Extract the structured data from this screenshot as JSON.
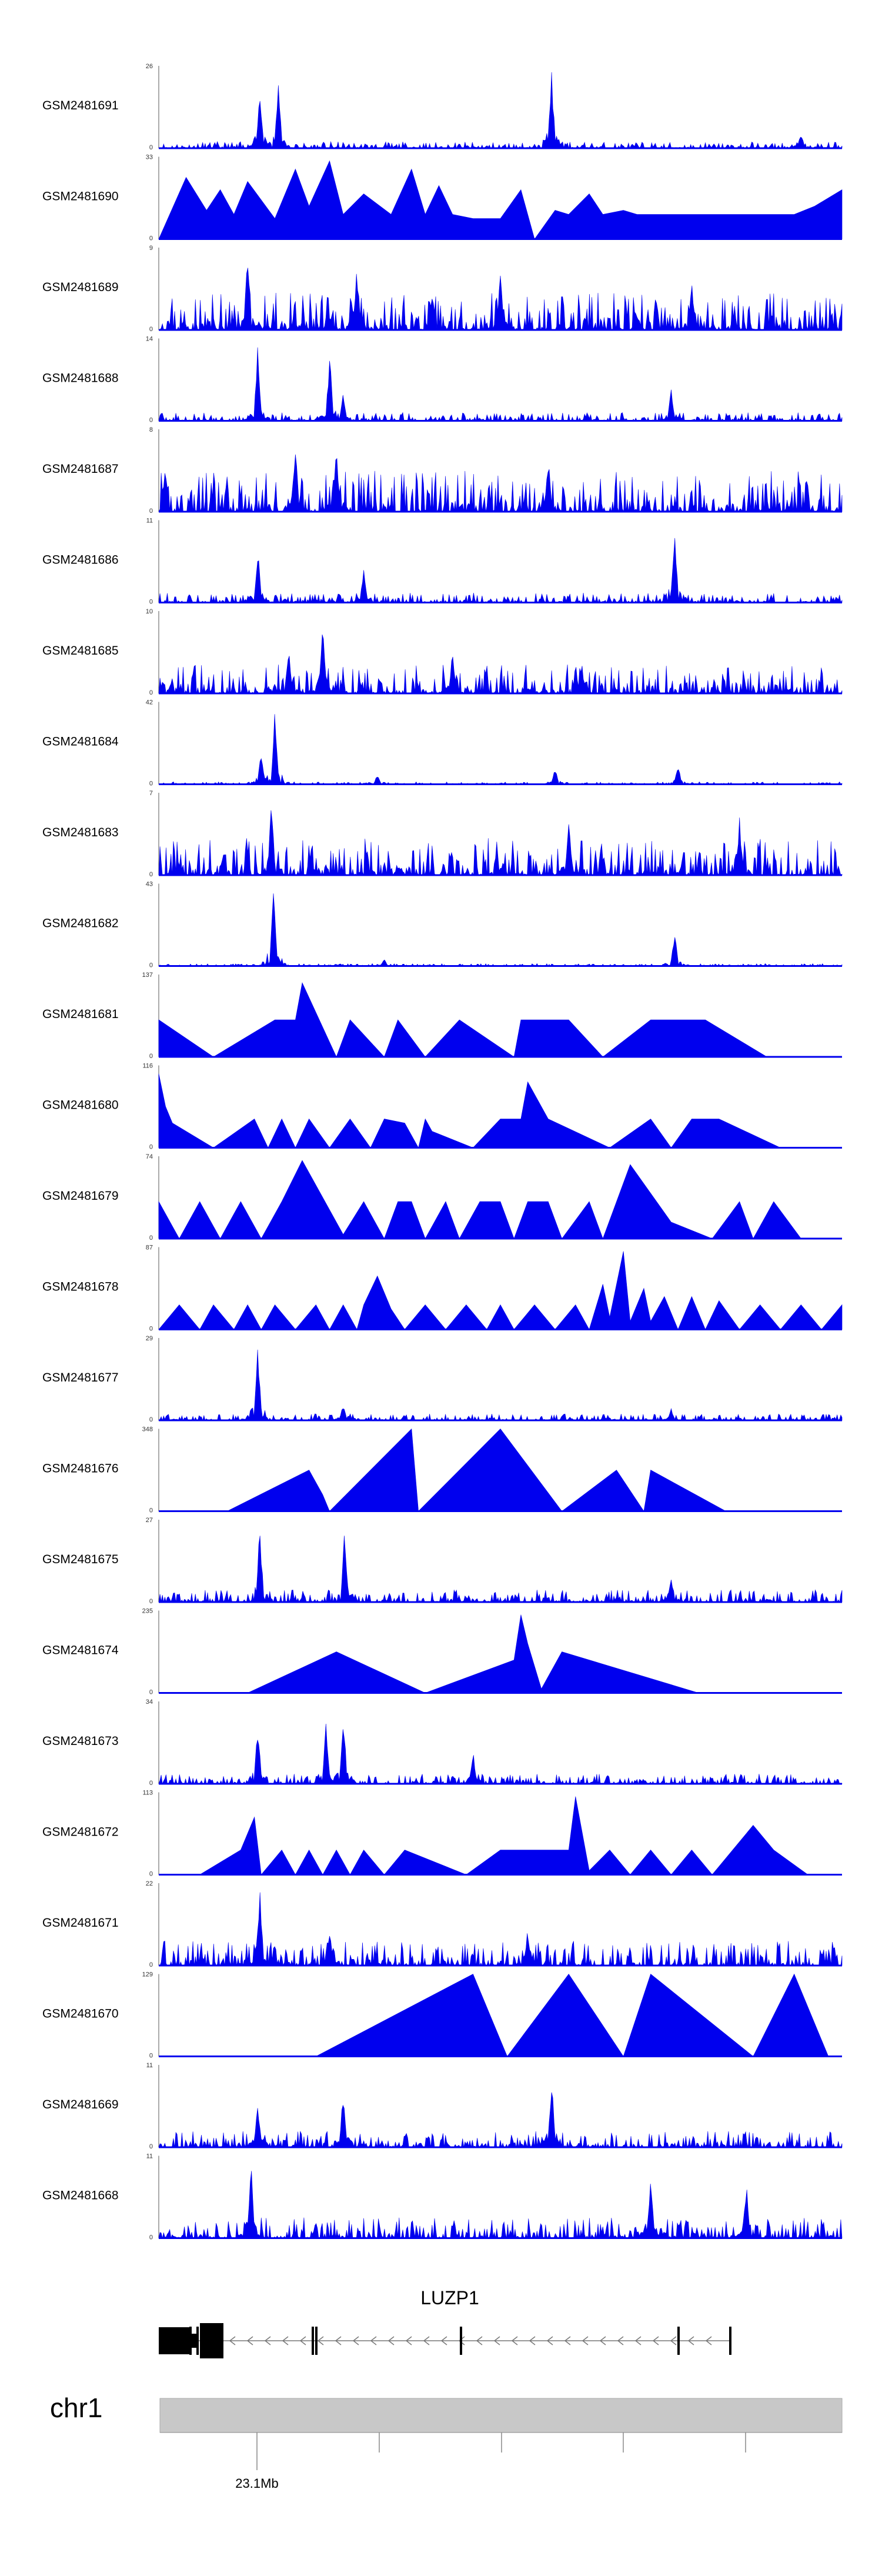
{
  "chart_data": {
    "type": "area",
    "title": "",
    "xlabel": "",
    "ylabel": "",
    "region": {
      "chromosome": "chr1",
      "axis_tick_label": "23.1Mb",
      "axis_ticks": 5
    },
    "gene": {
      "name": "LUZP1",
      "strand": "-"
    },
    "tracks": [
      {
        "name": "GSM2481691",
        "ymax": 26,
        "style": "noisy",
        "noise": 0.08,
        "seed": 11,
        "peaks": [
          [
            0.148,
            0.75
          ],
          [
            0.175,
            0.9
          ],
          [
            0.575,
            0.95
          ],
          [
            0.94,
            0.2
          ]
        ]
      },
      {
        "name": "GSM2481690",
        "ymax": 33,
        "style": "tri",
        "x": [
          0,
          0.04,
          0.07,
          0.09,
          0.11,
          0.13,
          0.17,
          0.2,
          0.22,
          0.25,
          0.27,
          0.3,
          0.34,
          0.37,
          0.39,
          0.41,
          0.43,
          0.46,
          0.5,
          0.53,
          0.55,
          0.58,
          0.6,
          0.63,
          0.65,
          0.68,
          0.7,
          0.73,
          0.76,
          0.78,
          0.81,
          0.84,
          0.86,
          0.9,
          0.93,
          0.96,
          1
        ],
        "y": [
          0,
          0.75,
          0.35,
          0.6,
          0.3,
          0.7,
          0.25,
          0.85,
          0.4,
          0.95,
          0.3,
          0.55,
          0.3,
          0.85,
          0.3,
          0.65,
          0.3,
          0.25,
          0.25,
          0.6,
          0.0,
          0.35,
          0.3,
          0.55,
          0.3,
          0.35,
          0.3,
          0.3,
          0.3,
          0.3,
          0.3,
          0.3,
          0.3,
          0.3,
          0.3,
          0.4,
          0.6
        ]
      },
      {
        "name": "GSM2481689",
        "ymax": 9,
        "style": "noisy",
        "noise": 0.45,
        "seed": 23,
        "peaks": [
          [
            0.13,
            0.95
          ],
          [
            0.29,
            0.8
          ],
          [
            0.5,
            0.7
          ],
          [
            0.78,
            0.65
          ]
        ]
      },
      {
        "name": "GSM2481688",
        "ymax": 14,
        "style": "noisy",
        "noise": 0.1,
        "seed": 37,
        "peaks": [
          [
            0.145,
            0.95
          ],
          [
            0.25,
            0.85
          ],
          [
            0.27,
            0.35
          ],
          [
            0.75,
            0.4
          ]
        ]
      },
      {
        "name": "GSM2481687",
        "ymax": 8,
        "style": "noisy",
        "noise": 0.5,
        "seed": 41,
        "peaks": [
          [
            0.2,
            0.95
          ],
          [
            0.26,
            0.85
          ],
          [
            0.57,
            0.7
          ]
        ]
      },
      {
        "name": "GSM2481686",
        "ymax": 11,
        "style": "noisy",
        "noise": 0.12,
        "seed": 53,
        "peaks": [
          [
            0.145,
            0.7
          ],
          [
            0.3,
            0.45
          ],
          [
            0.755,
            0.95
          ]
        ]
      },
      {
        "name": "GSM2481685",
        "ymax": 10,
        "style": "noisy",
        "noise": 0.35,
        "seed": 67,
        "peaks": [
          [
            0.24,
            0.95
          ],
          [
            0.19,
            0.6
          ],
          [
            0.43,
            0.55
          ]
        ]
      },
      {
        "name": "GSM2481684",
        "ymax": 42,
        "style": "noisy",
        "noise": 0.03,
        "seed": 71,
        "peaks": [
          [
            0.17,
            0.95
          ],
          [
            0.15,
            0.4
          ],
          [
            0.32,
            0.12
          ],
          [
            0.58,
            0.2
          ],
          [
            0.76,
            0.25
          ]
        ]
      },
      {
        "name": "GSM2481683",
        "ymax": 7,
        "style": "noisy",
        "noise": 0.45,
        "seed": 83,
        "peaks": [
          [
            0.165,
            0.95
          ],
          [
            0.6,
            0.7
          ],
          [
            0.85,
            0.7
          ]
        ]
      },
      {
        "name": "GSM2481682",
        "ymax": 43,
        "style": "noisy",
        "noise": 0.03,
        "seed": 97,
        "peaks": [
          [
            0.168,
            0.95
          ],
          [
            0.755,
            0.45
          ],
          [
            0.33,
            0.08
          ]
        ]
      },
      {
        "name": "GSM2481681",
        "ymax": 137,
        "style": "tri",
        "x": [
          0,
          0.08,
          0.17,
          0.2,
          0.21,
          0.26,
          0.28,
          0.33,
          0.35,
          0.39,
          0.44,
          0.52,
          0.53,
          0.6,
          0.65,
          0.72,
          0.8,
          0.89
        ],
        "y": [
          0.45,
          0,
          0.45,
          0.45,
          0.9,
          0,
          0.45,
          0,
          0.45,
          0,
          0.45,
          0.0,
          0.45,
          0.45,
          0,
          0.45,
          0.45,
          0
        ]
      },
      {
        "name": "GSM2481680",
        "ymax": 116,
        "style": "tri",
        "x": [
          0,
          0.01,
          0.02,
          0.08,
          0.14,
          0.16,
          0.18,
          0.2,
          0.22,
          0.25,
          0.28,
          0.31,
          0.33,
          0.36,
          0.38,
          0.39,
          0.4,
          0.46,
          0.5,
          0.53,
          0.54,
          0.57,
          0.66,
          0.72,
          0.75,
          0.78,
          0.82,
          0.91
        ],
        "y": [
          0.9,
          0.5,
          0.3,
          0,
          0.35,
          0,
          0.35,
          0,
          0.35,
          0,
          0.35,
          0,
          0.35,
          0.3,
          0,
          0.35,
          0.2,
          0,
          0.35,
          0.35,
          0.8,
          0.35,
          0,
          0.35,
          0,
          0.35,
          0.35,
          0
        ]
      },
      {
        "name": "GSM2481679",
        "ymax": 74,
        "style": "tri",
        "x": [
          0,
          0.03,
          0.06,
          0.09,
          0.12,
          0.15,
          0.18,
          0.21,
          0.27,
          0.3,
          0.33,
          0.35,
          0.37,
          0.39,
          0.42,
          0.44,
          0.47,
          0.5,
          0.52,
          0.54,
          0.57,
          0.59,
          0.63,
          0.65,
          0.69,
          0.75,
          0.81,
          0.85,
          0.87,
          0.9,
          0.94
        ],
        "y": [
          0.45,
          0,
          0.45,
          0,
          0.45,
          0,
          0.45,
          0.95,
          0.05,
          0.45,
          0,
          0.45,
          0.45,
          0,
          0.45,
          0,
          0.45,
          0.45,
          0,
          0.45,
          0.45,
          0,
          0.45,
          0,
          0.9,
          0.2,
          0,
          0.45,
          0,
          0.45,
          0
        ]
      },
      {
        "name": "GSM2481678",
        "ymax": 87,
        "style": "tri",
        "x": [
          0,
          0.03,
          0.06,
          0.08,
          0.11,
          0.13,
          0.15,
          0.17,
          0.2,
          0.23,
          0.25,
          0.27,
          0.29,
          0.3,
          0.32,
          0.34,
          0.36,
          0.39,
          0.42,
          0.45,
          0.48,
          0.5,
          0.52,
          0.55,
          0.58,
          0.61,
          0.63,
          0.65,
          0.66,
          0.68,
          0.69,
          0.71,
          0.72,
          0.74,
          0.76,
          0.78,
          0.8,
          0.82,
          0.85,
          0.88,
          0.91,
          0.94,
          0.97,
          1
        ],
        "y": [
          0,
          0.3,
          0,
          0.3,
          0,
          0.3,
          0,
          0.3,
          0,
          0.3,
          0,
          0.3,
          0,
          0.3,
          0.65,
          0.25,
          0,
          0.3,
          0,
          0.3,
          0,
          0.3,
          0,
          0.3,
          0,
          0.3,
          0,
          0.55,
          0.15,
          0.95,
          0.1,
          0.5,
          0.1,
          0.4,
          0,
          0.4,
          0,
          0.35,
          0,
          0.3,
          0,
          0.3,
          0,
          0.3
        ]
      },
      {
        "name": "GSM2481677",
        "ymax": 29,
        "style": "noisy",
        "noise": 0.08,
        "seed": 103,
        "peaks": [
          [
            0.145,
            0.95
          ],
          [
            0.27,
            0.2
          ],
          [
            0.75,
            0.15
          ]
        ]
      },
      {
        "name": "GSM2481676",
        "ymax": 348,
        "style": "tri",
        "x": [
          0.1,
          0.22,
          0.24,
          0.25,
          0.37,
          0.38,
          0.5,
          0.59,
          0.67,
          0.71,
          0.72,
          0.83
        ],
        "y": [
          0,
          0.5,
          0.2,
          0,
          1.0,
          0,
          1.0,
          0,
          0.5,
          0.0,
          0.5,
          0
        ]
      },
      {
        "name": "GSM2481675",
        "ymax": 27,
        "style": "noisy",
        "noise": 0.15,
        "seed": 113,
        "peaks": [
          [
            0.148,
            0.95
          ],
          [
            0.272,
            0.95
          ],
          [
            0.75,
            0.3
          ]
        ]
      },
      {
        "name": "GSM2481674",
        "ymax": 235,
        "style": "tri",
        "x": [
          0.13,
          0.26,
          0.39,
          0.52,
          0.53,
          0.54,
          0.56,
          0.59,
          0.79
        ],
        "y": [
          0,
          0.5,
          0,
          0.4,
          0.95,
          0.6,
          0.05,
          0.5,
          0
        ]
      },
      {
        "name": "GSM2481673",
        "ymax": 34,
        "style": "noisy",
        "noise": 0.12,
        "seed": 127,
        "peaks": [
          [
            0.145,
            0.75
          ],
          [
            0.245,
            0.85
          ],
          [
            0.27,
            0.95
          ],
          [
            0.46,
            0.4
          ]
        ]
      },
      {
        "name": "GSM2481672",
        "ymax": 113,
        "style": "tri",
        "x": [
          0.06,
          0.12,
          0.14,
          0.15,
          0.18,
          0.2,
          0.22,
          0.24,
          0.26,
          0.28,
          0.3,
          0.33,
          0.36,
          0.45,
          0.5,
          0.6,
          0.61,
          0.63,
          0.66,
          0.69,
          0.72,
          0.75,
          0.78,
          0.81,
          0.84,
          0.87,
          0.9,
          0.95
        ],
        "y": [
          0,
          0.3,
          0.7,
          0,
          0.3,
          0,
          0.3,
          0,
          0.3,
          0,
          0.3,
          0,
          0.3,
          0,
          0.3,
          0.3,
          0.95,
          0.05,
          0.3,
          0,
          0.3,
          0,
          0.3,
          0,
          0.3,
          0.6,
          0.3,
          0
        ]
      },
      {
        "name": "GSM2481671",
        "ymax": 22,
        "style": "noisy",
        "noise": 0.3,
        "seed": 137,
        "peaks": [
          [
            0.148,
            0.95
          ],
          [
            0.25,
            0.5
          ],
          [
            0.54,
            0.5
          ]
        ]
      },
      {
        "name": "GSM2481670",
        "ymax": 129,
        "style": "tri",
        "x": [
          0.23,
          0.46,
          0.51,
          0.6,
          0.68,
          0.72,
          0.87,
          0.93,
          0.98
        ],
        "y": [
          0,
          1.0,
          0,
          1.0,
          0,
          1.0,
          0,
          1.0,
          0
        ]
      },
      {
        "name": "GSM2481669",
        "ymax": 11,
        "style": "noisy",
        "noise": 0.2,
        "seed": 149,
        "peaks": [
          [
            0.575,
            0.95
          ],
          [
            0.27,
            0.75
          ],
          [
            0.145,
            0.6
          ]
        ]
      },
      {
        "name": "GSM2481668",
        "ymax": 11,
        "style": "noisy",
        "noise": 0.25,
        "seed": 157,
        "peaks": [
          [
            0.135,
            0.95
          ],
          [
            0.72,
            0.85
          ],
          [
            0.86,
            0.75
          ]
        ]
      }
    ]
  }
}
